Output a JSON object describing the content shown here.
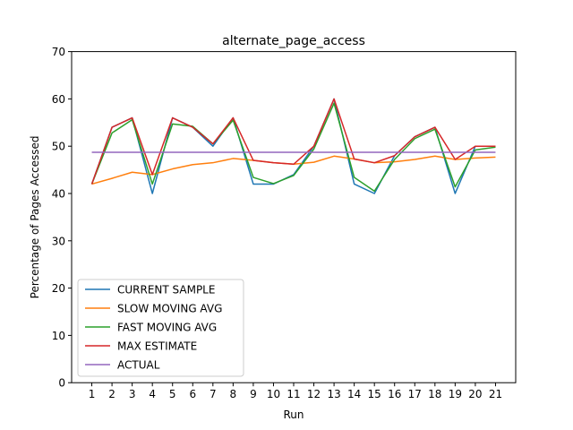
{
  "chart_data": {
    "type": "line",
    "title": "alternate_page_access",
    "xlabel": "Run",
    "ylabel": "Percentage of Pages Accessed",
    "x": [
      1,
      2,
      3,
      4,
      5,
      6,
      7,
      8,
      9,
      10,
      11,
      12,
      13,
      14,
      15,
      16,
      17,
      18,
      19,
      20,
      21
    ],
    "xticks": [
      "1",
      "2",
      "3",
      "4",
      "5",
      "6",
      "7",
      "8",
      "9",
      "10",
      "11",
      "12",
      "13",
      "14",
      "15",
      "16",
      "17",
      "18",
      "19",
      "20",
      "21"
    ],
    "ylim": [
      0,
      70
    ],
    "yticks": [
      "0",
      "10",
      "20",
      "30",
      "40",
      "50",
      "60",
      "70"
    ],
    "legend_position": "lower-left",
    "grid": false,
    "series": [
      {
        "name": "CURRENT SAMPLE",
        "color": "#1f77b4",
        "values": [
          42,
          54,
          56,
          40,
          56,
          54,
          50,
          56,
          42,
          42,
          44,
          50,
          60,
          42,
          40,
          48,
          52,
          54,
          40,
          50,
          50
        ]
      },
      {
        "name": "SLOW MOVING AVG",
        "color": "#ff7f0e",
        "values": [
          42,
          43.2,
          44.5,
          44,
          45.2,
          46.1,
          46.5,
          47.4,
          47,
          46.5,
          46.2,
          46.6,
          47.9,
          47.3,
          46.5,
          46.7,
          47.2,
          47.9,
          47.2,
          47.5,
          47.7
        ]
      },
      {
        "name": "FAST MOVING AVG",
        "color": "#2ca02c",
        "values": [
          42,
          52.8,
          55.6,
          42,
          54.7,
          54.2,
          50.5,
          55.5,
          43.4,
          42.1,
          43.8,
          49.4,
          59.1,
          43.4,
          40.5,
          47.2,
          51.6,
          53.6,
          41.4,
          49.2,
          49.8
        ]
      },
      {
        "name": "MAX ESTIMATE",
        "color": "#d62728",
        "values": [
          42,
          54,
          56,
          44,
          56,
          54,
          50.5,
          56,
          47,
          46.5,
          46.2,
          50,
          60,
          47.3,
          46.5,
          48,
          52,
          54,
          47.2,
          50,
          50
        ]
      },
      {
        "name": "ACTUAL",
        "color": "#9467bd",
        "values": [
          48.7,
          48.7,
          48.7,
          48.7,
          48.7,
          48.7,
          48.7,
          48.7,
          48.7,
          48.7,
          48.7,
          48.7,
          48.7,
          48.7,
          48.7,
          48.7,
          48.7,
          48.7,
          48.7,
          48.7,
          48.7
        ]
      }
    ]
  }
}
